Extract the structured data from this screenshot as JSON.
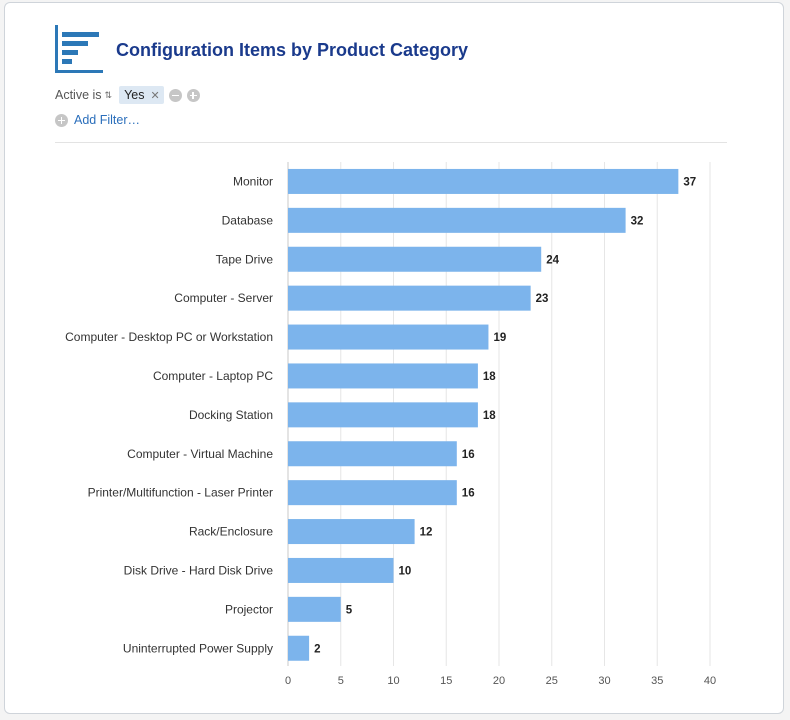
{
  "report": {
    "title": "Configuration Items by Product Category",
    "icon": "bar-chart-report-icon"
  },
  "filter": {
    "field_label": "Active is",
    "value": "Yes",
    "add_filter_label": "Add Filter…"
  },
  "colors": {
    "bar": "#7cb4ec",
    "title": "#1a3a8c",
    "icon": "#2c78b7",
    "link": "#2a6ebb"
  },
  "chart_data": {
    "type": "bar",
    "orientation": "horizontal",
    "categories": [
      "Monitor",
      "Database",
      "Tape Drive",
      "Computer - Server",
      "Computer - Desktop PC or Workstation",
      "Computer - Laptop PC",
      "Docking Station",
      "Computer - Virtual Machine",
      "Printer/Multifunction - Laser Printer",
      "Rack/Enclosure",
      "Disk Drive - Hard Disk Drive",
      "Projector",
      "Uninterrupted Power Supply"
    ],
    "values": [
      37,
      32,
      24,
      23,
      19,
      18,
      18,
      16,
      16,
      12,
      10,
      5,
      2
    ],
    "xlim": [
      0,
      40
    ],
    "xticks": [
      0,
      5,
      10,
      15,
      20,
      25,
      30,
      35,
      40
    ],
    "grid": true,
    "data_labels": true
  }
}
